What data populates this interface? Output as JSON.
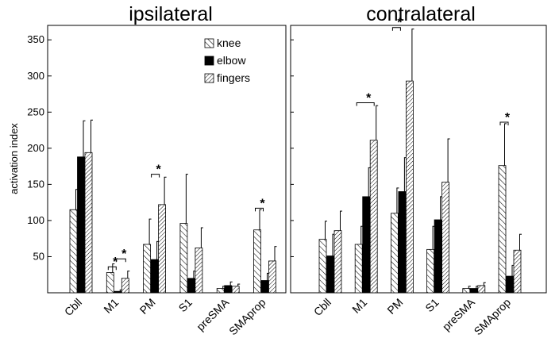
{
  "chart_data": [
    {
      "type": "bar",
      "title": "ipsilateral",
      "ylabel": "activation index",
      "ylim": [
        0,
        370
      ],
      "yticks": [
        50,
        100,
        150,
        200,
        250,
        300,
        350
      ],
      "categories": [
        "Cbll",
        "M1",
        "PM",
        "S1",
        "preSMA",
        "SMAprop"
      ],
      "legend": {
        "placement": "top-right",
        "entries": [
          "knee",
          "elbow",
          "fingers"
        ]
      },
      "series": [
        {
          "name": "knee",
          "values": [
            115,
            28,
            67,
            96,
            6,
            87
          ],
          "errors": [
            28,
            12,
            35,
            68,
            3,
            28
          ]
        },
        {
          "name": "elbow",
          "values": [
            188,
            2,
            46,
            20,
            10,
            17
          ],
          "errors": [
            50,
            2,
            25,
            10,
            5,
            10
          ]
        },
        {
          "name": "fingers",
          "values": [
            194,
            20,
            122,
            62,
            9,
            44
          ],
          "errors": [
            45,
            10,
            38,
            28,
            3,
            20
          ]
        }
      ],
      "significance": [
        {
          "category": "M1",
          "label": "*"
        },
        {
          "category": "M1",
          "label": "*"
        },
        {
          "category": "PM",
          "label": "*"
        },
        {
          "category": "SMAprop",
          "label": "*"
        }
      ]
    },
    {
      "type": "bar",
      "title": "contralateral",
      "ylim": [
        0,
        370
      ],
      "categories": [
        "Cbll",
        "M1",
        "PM",
        "S1",
        "preSMA",
        "SMAprop"
      ],
      "series": [
        {
          "name": "knee",
          "values": [
            74,
            67,
            110,
            60,
            6,
            176
          ],
          "errors": [
            25,
            25,
            35,
            32,
            3,
            58
          ]
        },
        {
          "name": "elbow",
          "values": [
            51,
            133,
            140,
            101,
            6,
            23
          ],
          "errors": [
            30,
            40,
            47,
            32,
            3,
            15
          ]
        },
        {
          "name": "fingers",
          "values": [
            86,
            211,
            293,
            153,
            10,
            59
          ],
          "errors": [
            27,
            48,
            72,
            60,
            4,
            22
          ]
        }
      ],
      "significance": [
        {
          "category": "M1",
          "label": "*"
        },
        {
          "category": "PM",
          "label": "*"
        },
        {
          "category": "SMAprop",
          "label": "*"
        }
      ]
    }
  ]
}
